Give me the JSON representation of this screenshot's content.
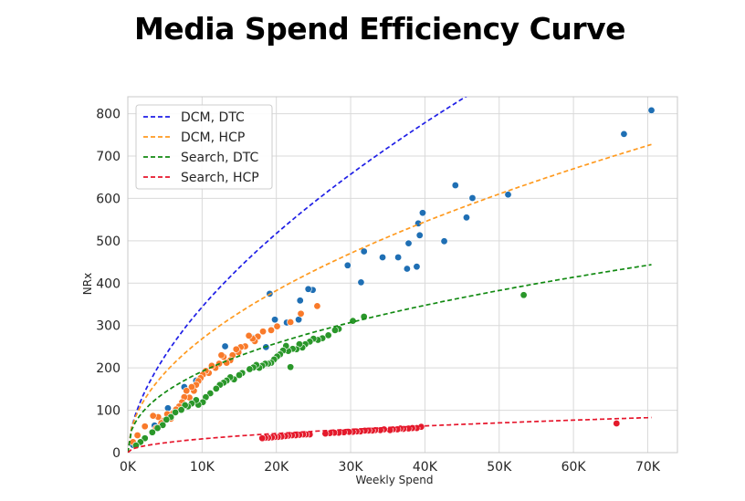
{
  "chart_data": {
    "type": "scatter",
    "title": "Media Spend Efficiency Curve",
    "xlabel": "Weekly Spend",
    "ylabel": "NRx",
    "xlim": [
      0,
      74000
    ],
    "ylim": [
      0,
      840
    ],
    "x_ticks": [
      0,
      10000,
      20000,
      30000,
      40000,
      50000,
      60000,
      70000
    ],
    "x_tick_labels": [
      "0K",
      "10K",
      "20K",
      "30K",
      "40K",
      "50K",
      "60K",
      "70K"
    ],
    "y_ticks": [
      0,
      100,
      200,
      300,
      400,
      500,
      600,
      700,
      800
    ],
    "y_tick_labels": [
      "0",
      "100",
      "200",
      "300",
      "400",
      "500",
      "600",
      "700",
      "800"
    ],
    "grid": true,
    "legend_position": "top-left",
    "curves": [
      {
        "name": "DCM, DTC",
        "color": "#1f1fe6",
        "a": 1.5,
        "b": 0.59,
        "x_max": 70500
      },
      {
        "name": "DCM, HCP",
        "color": "#ff9a1f",
        "a": 2.45,
        "b": 0.51,
        "x_max": 70500
      },
      {
        "name": "Search, DTC",
        "color": "#128a12",
        "a": 3.65,
        "b": 0.43,
        "x_max": 70500
      },
      {
        "name": "Search, HCP",
        "color": "#e6152b",
        "a": 0.39,
        "b": 0.48,
        "x_max": 70500
      }
    ],
    "scatter_series": [
      {
        "color": "#1f6fb4",
        "points": [
          [
            70500,
            808
          ],
          [
            66800,
            752
          ],
          [
            51200,
            609
          ],
          [
            46400,
            601
          ],
          [
            45600,
            555
          ],
          [
            44100,
            631
          ],
          [
            42600,
            499
          ],
          [
            39700,
            566
          ],
          [
            39300,
            513
          ],
          [
            39100,
            541
          ],
          [
            38900,
            439
          ],
          [
            37800,
            494
          ],
          [
            37600,
            434
          ],
          [
            36400,
            461
          ],
          [
            34300,
            461
          ],
          [
            31800,
            475
          ],
          [
            31400,
            402
          ],
          [
            29600,
            442
          ],
          [
            24900,
            384
          ],
          [
            24300,
            386
          ],
          [
            23200,
            359
          ],
          [
            23000,
            314
          ],
          [
            21400,
            307
          ],
          [
            19800,
            314
          ],
          [
            19100,
            375
          ],
          [
            18600,
            249
          ],
          [
            16800,
            271
          ],
          [
            13100,
            251
          ],
          [
            9200,
            170
          ],
          [
            7600,
            155
          ],
          [
            5400,
            105
          ],
          [
            3600,
            64
          ],
          [
            700,
            18
          ]
        ]
      },
      {
        "color": "#f97a2a",
        "points": [
          [
            25500,
            346
          ],
          [
            23300,
            328
          ],
          [
            21900,
            308
          ],
          [
            20100,
            298
          ],
          [
            19300,
            289
          ],
          [
            18200,
            286
          ],
          [
            17500,
            274
          ],
          [
            17100,
            263
          ],
          [
            16800,
            269
          ],
          [
            16300,
            276
          ],
          [
            15800,
            251
          ],
          [
            15200,
            249
          ],
          [
            14900,
            237
          ],
          [
            14600,
            244
          ],
          [
            14100,
            230
          ],
          [
            13800,
            218
          ],
          [
            13300,
            212
          ],
          [
            12900,
            226
          ],
          [
            12600,
            230
          ],
          [
            12300,
            210
          ],
          [
            11800,
            200
          ],
          [
            11300,
            205
          ],
          [
            10900,
            188
          ],
          [
            10500,
            193
          ],
          [
            10100,
            184
          ],
          [
            9800,
            176
          ],
          [
            9500,
            169
          ],
          [
            9200,
            160
          ],
          [
            8900,
            146
          ],
          [
            8600,
            155
          ],
          [
            8300,
            130
          ],
          [
            7900,
            146
          ],
          [
            7600,
            131
          ],
          [
            7300,
            119
          ],
          [
            6900,
            109
          ],
          [
            6500,
            102
          ],
          [
            6100,
            93
          ],
          [
            5800,
            80
          ],
          [
            5300,
            91
          ],
          [
            4900,
            76
          ],
          [
            4500,
            70
          ],
          [
            4100,
            84
          ],
          [
            3800,
            58
          ],
          [
            3400,
            87
          ],
          [
            2300,
            62
          ],
          [
            1300,
            41
          ],
          [
            700,
            25
          ]
        ]
      },
      {
        "color": "#2a972a",
        "points": [
          [
            53300,
            372
          ],
          [
            31800,
            321
          ],
          [
            30300,
            311
          ],
          [
            28400,
            292
          ],
          [
            27900,
            289
          ],
          [
            27000,
            277
          ],
          [
            26200,
            270
          ],
          [
            25600,
            266
          ],
          [
            25000,
            269
          ],
          [
            24500,
            262
          ],
          [
            23900,
            256
          ],
          [
            23500,
            248
          ],
          [
            23100,
            256
          ],
          [
            22700,
            244
          ],
          [
            22200,
            245
          ],
          [
            21900,
            202
          ],
          [
            21600,
            240
          ],
          [
            21300,
            252
          ],
          [
            20900,
            241
          ],
          [
            20500,
            232
          ],
          [
            20100,
            227
          ],
          [
            19700,
            220
          ],
          [
            19300,
            212
          ],
          [
            18900,
            210
          ],
          [
            18500,
            210
          ],
          [
            18100,
            205
          ],
          [
            17700,
            200
          ],
          [
            17300,
            207
          ],
          [
            16900,
            201
          ],
          [
            16400,
            197
          ],
          [
            15400,
            188
          ],
          [
            15000,
            183
          ],
          [
            14300,
            173
          ],
          [
            13800,
            178
          ],
          [
            13300,
            170
          ],
          [
            12900,
            165
          ],
          [
            12400,
            160
          ],
          [
            11900,
            151
          ],
          [
            11100,
            140
          ],
          [
            10500,
            131
          ],
          [
            10100,
            119
          ],
          [
            9500,
            113
          ],
          [
            9200,
            124
          ],
          [
            8600,
            116
          ],
          [
            8100,
            109
          ],
          [
            7700,
            112
          ],
          [
            7200,
            101
          ],
          [
            6400,
            95
          ],
          [
            5800,
            84
          ],
          [
            5200,
            78
          ],
          [
            4700,
            65
          ],
          [
            4000,
            58
          ],
          [
            3300,
            48
          ],
          [
            2300,
            34
          ],
          [
            1700,
            25
          ],
          [
            1100,
            17
          ]
        ]
      },
      {
        "color": "#e41a2b",
        "points": [
          [
            65800,
            69
          ],
          [
            39500,
            61
          ],
          [
            38900,
            58
          ],
          [
            38300,
            58
          ],
          [
            37800,
            57
          ],
          [
            37100,
            56
          ],
          [
            36700,
            57
          ],
          [
            36300,
            55
          ],
          [
            35700,
            55
          ],
          [
            35300,
            53
          ],
          [
            34500,
            55
          ],
          [
            34000,
            53
          ],
          [
            33300,
            53
          ],
          [
            32900,
            52
          ],
          [
            32400,
            52
          ],
          [
            31900,
            52
          ],
          [
            31300,
            50
          ],
          [
            30800,
            50
          ],
          [
            30300,
            49
          ],
          [
            29800,
            49
          ],
          [
            29100,
            48
          ],
          [
            28400,
            47
          ],
          [
            27800,
            47
          ],
          [
            27200,
            46
          ],
          [
            26600,
            45
          ],
          [
            24500,
            43
          ],
          [
            24000,
            43
          ],
          [
            23600,
            43
          ],
          [
            23100,
            42
          ],
          [
            22600,
            41
          ],
          [
            22100,
            41
          ],
          [
            21600,
            40
          ],
          [
            21200,
            39
          ],
          [
            20700,
            38
          ],
          [
            20200,
            37
          ],
          [
            19800,
            37
          ],
          [
            19400,
            36
          ],
          [
            18900,
            35
          ],
          [
            18500,
            35
          ],
          [
            18100,
            34
          ]
        ]
      }
    ]
  }
}
